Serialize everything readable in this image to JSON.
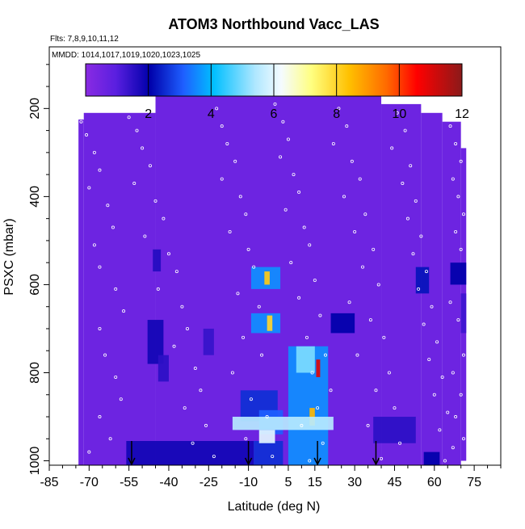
{
  "chart_data": {
    "type": "heatmap",
    "title": "ATOM3 Northbound Vacc_LAS",
    "subtitle_flights": "Flts: 7,8,9,10,11,12",
    "subtitle_dates": "MMDD: 1014,1017,1019,1020,1023,1025",
    "xlabel": "Latitude (deg N)",
    "ylabel": "PSXC (mbar)",
    "xlim": [
      -85,
      85
    ],
    "ylim": [
      1010,
      60
    ],
    "x_ticks": [
      "-85",
      "-70",
      "-55",
      "-40",
      "-25",
      "-10",
      "5",
      "15",
      "30",
      "45",
      "60",
      "75"
    ],
    "x_tick_values": [
      -85,
      -70,
      -55,
      -40,
      -25,
      -10,
      5,
      15,
      30,
      45,
      60,
      75
    ],
    "y_ticks": [
      "200",
      "400",
      "600",
      "800",
      "1000"
    ],
    "y_tick_values": [
      200,
      400,
      600,
      800,
      1000
    ],
    "colorbar": {
      "ticks": [
        "2",
        "4",
        "6",
        "8",
        "10",
        "12"
      ],
      "tick_values": [
        2,
        4,
        6,
        8,
        10,
        12
      ],
      "range": [
        0,
        12
      ],
      "colors": [
        "#8a2be2",
        "#0000aa",
        "#1e90ff",
        "#00bfff",
        "#e0f8ff",
        "#ffff80",
        "#ffa500",
        "#ff0000",
        "#8b0000"
      ]
    },
    "arrow_latitudes": [
      -54,
      -10,
      16,
      38
    ],
    "background_value": 0.6,
    "coverage": [
      {
        "lat": [
          -74,
          -72
        ],
        "p": [
          225,
          1010
        ]
      },
      {
        "lat": [
          -72,
          -45
        ],
        "p": [
          210,
          1010
        ]
      },
      {
        "lat": [
          -45,
          40
        ],
        "p": [
          170,
          1010
        ]
      },
      {
        "lat": [
          40,
          55
        ],
        "p": [
          190,
          1010
        ]
      },
      {
        "lat": [
          55,
          63
        ],
        "p": [
          210,
          1010
        ]
      },
      {
        "lat": [
          63,
          70
        ],
        "p": [
          230,
          1010
        ]
      },
      {
        "lat": [
          70,
          72
        ],
        "p": [
          290,
          1000
        ]
      }
    ],
    "features": [
      {
        "lat": [
          -56,
          -8
        ],
        "p": [
          955,
          1010
        ],
        "value": 1.8
      },
      {
        "lat": [
          -8,
          3
        ],
        "p": [
          955,
          1010
        ],
        "value": 2.5
      },
      {
        "lat": [
          -48,
          -42
        ],
        "p": [
          680,
          780
        ],
        "value": 1.8
      },
      {
        "lat": [
          -44,
          -40
        ],
        "p": [
          760,
          820
        ],
        "value": 1.5
      },
      {
        "lat": [
          -46,
          -43
        ],
        "p": [
          520,
          570
        ],
        "value": 1.6
      },
      {
        "lat": [
          -9,
          2
        ],
        "p": [
          560,
          610
        ],
        "value": 3.5
      },
      {
        "lat": [
          -4,
          -2
        ],
        "p": [
          570,
          600
        ],
        "value": 8.2
      },
      {
        "lat": [
          -9,
          2
        ],
        "p": [
          665,
          710
        ],
        "value": 3.5
      },
      {
        "lat": [
          -3,
          -1
        ],
        "p": [
          670,
          705
        ],
        "value": 8.0
      },
      {
        "lat": [
          -13,
          1
        ],
        "p": [
          840,
          910
        ],
        "value": 2.5
      },
      {
        "lat": [
          -6,
          3
        ],
        "p": [
          885,
          940
        ],
        "value": 3.0
      },
      {
        "lat": [
          5,
          20
        ],
        "p": [
          740,
          1010
        ],
        "value": 3.5
      },
      {
        "lat": [
          8,
          15
        ],
        "p": [
          740,
          800
        ],
        "value": 5.0
      },
      {
        "lat": [
          13,
          15
        ],
        "p": [
          880,
          920
        ],
        "value": 8.5
      },
      {
        "lat": [
          15.5,
          17
        ],
        "p": [
          770,
          810
        ],
        "value": 11.0
      },
      {
        "lat": [
          -16,
          22
        ],
        "p": [
          900,
          930
        ],
        "value": 5.5
      },
      {
        "lat": [
          -6,
          0
        ],
        "p": [
          930,
          960
        ],
        "value": 6.0
      },
      {
        "lat": [
          21,
          30
        ],
        "p": [
          665,
          710
        ],
        "value": 2.0
      },
      {
        "lat": [
          37,
          53
        ],
        "p": [
          900,
          960
        ],
        "value": 1.5
      },
      {
        "lat": [
          66,
          72
        ],
        "p": [
          550,
          600
        ],
        "value": 2.0
      },
      {
        "lat": [
          70,
          72
        ],
        "p": [
          620,
          710
        ],
        "value": 1.3
      },
      {
        "lat": [
          53,
          58
        ],
        "p": [
          560,
          620
        ],
        "value": 2.2
      },
      {
        "lat": [
          56,
          62
        ],
        "p": [
          980,
          1010
        ],
        "value": 2.0
      },
      {
        "lat": [
          -27,
          -23
        ],
        "p": [
          700,
          760
        ],
        "value": 1.4
      }
    ],
    "sample_points": [
      [
        -73,
        230
      ],
      [
        -71,
        260
      ],
      [
        -68,
        300
      ],
      [
        -66,
        340
      ],
      [
        -70,
        380
      ],
      [
        -63,
        420
      ],
      [
        -61,
        470
      ],
      [
        -68,
        510
      ],
      [
        -66,
        560
      ],
      [
        -60,
        610
      ],
      [
        -57,
        660
      ],
      [
        -66,
        700
      ],
      [
        -64,
        760
      ],
      [
        -60,
        810
      ],
      [
        -58,
        860
      ],
      [
        -66,
        900
      ],
      [
        -62,
        950
      ],
      [
        -70,
        980
      ],
      [
        -55,
        220
      ],
      [
        -52,
        250
      ],
      [
        -50,
        290
      ],
      [
        -47,
        330
      ],
      [
        -53,
        370
      ],
      [
        -45,
        410
      ],
      [
        -42,
        450
      ],
      [
        -49,
        490
      ],
      [
        -40,
        530
      ],
      [
        -37,
        570
      ],
      [
        -44,
        610
      ],
      [
        -35,
        650
      ],
      [
        -33,
        700
      ],
      [
        -38,
        740
      ],
      [
        -30,
        790
      ],
      [
        -28,
        840
      ],
      [
        -34,
        880
      ],
      [
        -26,
        920
      ],
      [
        -31,
        960
      ],
      [
        -23,
        990
      ],
      [
        -22,
        200
      ],
      [
        -20,
        240
      ],
      [
        -18,
        280
      ],
      [
        -15,
        320
      ],
      [
        -20,
        360
      ],
      [
        -13,
        400
      ],
      [
        -11,
        440
      ],
      [
        -17,
        480
      ],
      [
        -10,
        520
      ],
      [
        -8,
        560
      ],
      [
        -14,
        620
      ],
      [
        -6,
        650
      ],
      [
        -12,
        720
      ],
      [
        -5,
        760
      ],
      [
        -16,
        800
      ],
      [
        -9,
        860
      ],
      [
        -3,
        900
      ],
      [
        -11,
        950
      ],
      [
        -1,
        990
      ],
      [
        0,
        190
      ],
      [
        3,
        230
      ],
      [
        5,
        270
      ],
      [
        2,
        310
      ],
      [
        7,
        350
      ],
      [
        9,
        390
      ],
      [
        4,
        430
      ],
      [
        11,
        470
      ],
      [
        13,
        510
      ],
      [
        6,
        550
      ],
      [
        15,
        590
      ],
      [
        9,
        630
      ],
      [
        17,
        670
      ],
      [
        12,
        720
      ],
      [
        19,
        760
      ],
      [
        14,
        800
      ],
      [
        21,
        840
      ],
      [
        16,
        880
      ],
      [
        10,
        920
      ],
      [
        18,
        960
      ],
      [
        13,
        1000
      ],
      [
        24,
        200
      ],
      [
        27,
        240
      ],
      [
        22,
        280
      ],
      [
        29,
        320
      ],
      [
        32,
        360
      ],
      [
        26,
        400
      ],
      [
        34,
        440
      ],
      [
        30,
        480
      ],
      [
        37,
        520
      ],
      [
        33,
        560
      ],
      [
        39,
        600
      ],
      [
        28,
        640
      ],
      [
        36,
        680
      ],
      [
        41,
        720
      ],
      [
        31,
        760
      ],
      [
        43,
        800
      ],
      [
        38,
        840
      ],
      [
        45,
        880
      ],
      [
        35,
        920
      ],
      [
        47,
        960
      ],
      [
        40,
        995
      ],
      [
        46,
        210
      ],
      [
        49,
        250
      ],
      [
        44,
        290
      ],
      [
        51,
        330
      ],
      [
        48,
        370
      ],
      [
        53,
        410
      ],
      [
        50,
        450
      ],
      [
        55,
        490
      ],
      [
        52,
        530
      ],
      [
        57,
        570
      ],
      [
        54,
        610
      ],
      [
        59,
        650
      ],
      [
        56,
        690
      ],
      [
        61,
        730
      ],
      [
        58,
        770
      ],
      [
        63,
        810
      ],
      [
        60,
        850
      ],
      [
        65,
        890
      ],
      [
        62,
        930
      ],
      [
        67,
        970
      ],
      [
        64,
        1000
      ],
      [
        66,
        240
      ],
      [
        68,
        280
      ],
      [
        70,
        320
      ],
      [
        67,
        360
      ],
      [
        69,
        400
      ],
      [
        71,
        440
      ],
      [
        68,
        480
      ],
      [
        70,
        520
      ],
      [
        66,
        640
      ],
      [
        69,
        680
      ],
      [
        71,
        760
      ],
      [
        67,
        800
      ],
      [
        70,
        850
      ],
      [
        68,
        900
      ],
      [
        71,
        950
      ]
    ]
  }
}
